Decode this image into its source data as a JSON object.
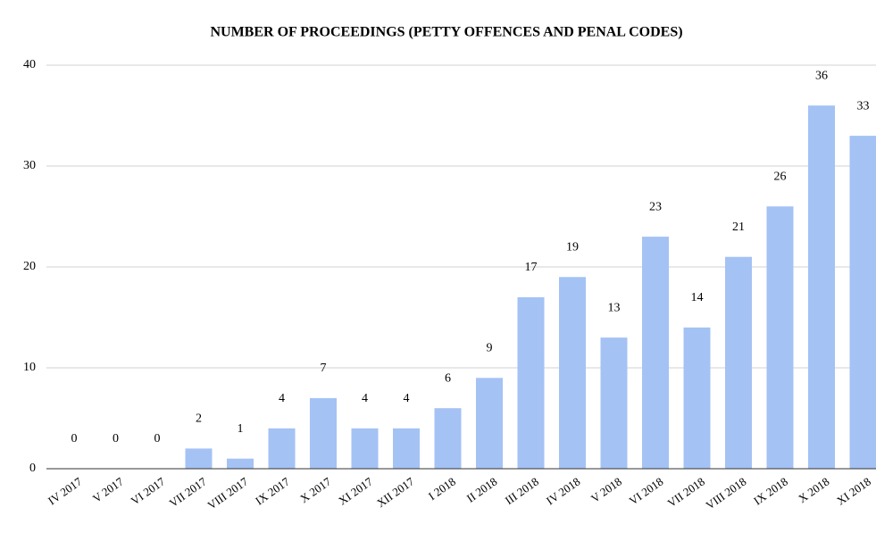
{
  "chart_data": {
    "type": "bar",
    "title": "NUMBER OF PROCEEDINGS (PETTY OFFENCES AND PENAL CODES)",
    "categories": [
      "IV 2017",
      "V 2017",
      "VI 2017",
      "VII 2017",
      "VIII 2017",
      "IX 2017",
      "X 2017",
      "XI 2017",
      "XII 2017",
      "I 2018",
      "II 2018",
      "III 2018",
      "IV 2018",
      "V 2018",
      "VI 2018",
      "VII 2018",
      "VIII 2018",
      "IX 2018",
      "X 2018",
      "XI 2018"
    ],
    "values": [
      0,
      0,
      0,
      2,
      1,
      4,
      7,
      4,
      4,
      6,
      9,
      17,
      19,
      13,
      23,
      14,
      21,
      26,
      36,
      33
    ],
    "color": "#a4c2f4",
    "ylim": [
      0,
      40
    ],
    "yticks": [
      0,
      10,
      20,
      30,
      40
    ],
    "grid": true
  }
}
